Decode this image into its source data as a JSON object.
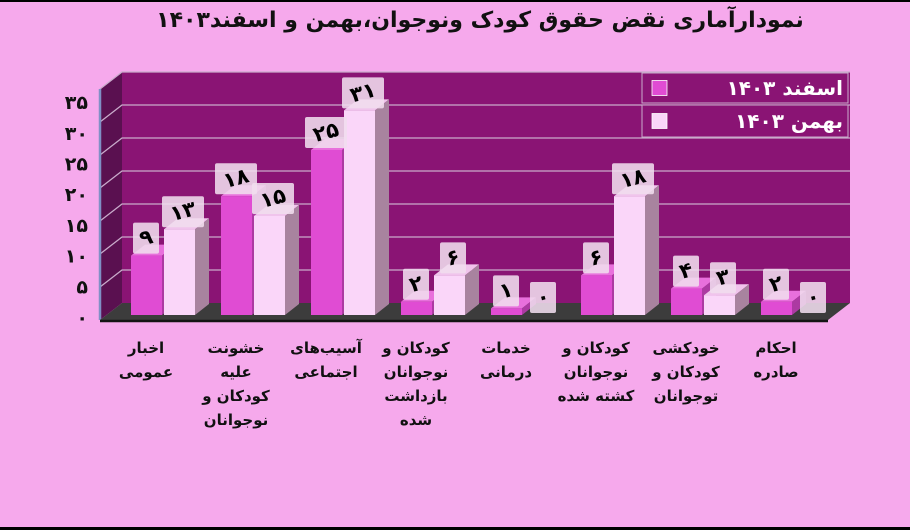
{
  "page": {
    "title": "نمودارآماری نقض حقوق کودک ونوجوان،بهمن  و  اسفند۱۴۰۳"
  },
  "colors": {
    "background": "#F6A9EC",
    "title_text": "#111111",
    "axis_text": "#111111",
    "back_wall": "#8A1474",
    "left_wall": "#5A1050",
    "wall_edge": "#8090C5",
    "floor": "#3C3C3C",
    "floor_edge": "#141414",
    "gridline": "#C9ABCB",
    "esfand": "#E04CD3",
    "esfand_top": "#E870DC",
    "esfand_side": "#AC3AA2",
    "bahman": "#FAD6F9",
    "bahman_top": "#F0C4EC",
    "bahman_side": "#A8839F",
    "tag_bg": "#F0DDEE",
    "tag_text": "#000000",
    "legend_text": "#FFFFFF"
  },
  "chart_data": {
    "type": "bar",
    "style": "3d-clustered",
    "title": "نمودارآماری نقض حقوق کودک ونوجوان،بهمن  و  اسفند۱۴۰۳",
    "categories": [
      "اخبار عمومی",
      "خشونت علیه کودکان و نوجوانان",
      "آسیب‌های اجتماعی",
      "کودکان و نوجوانان بازداشت شده",
      "خدمات درمانی",
      "کودکان و نوجوانان کشته شده",
      "خودکشی کودکان و توجوانان",
      "احکام صادره"
    ],
    "category_lines": [
      [
        "اخبار",
        "عمومی"
      ],
      [
        "خشونت",
        "علیه",
        "کودکان و",
        "نوجوانان"
      ],
      [
        "آسیب‌های",
        "اجتماعی"
      ],
      [
        "کودکان و",
        "نوجوانان",
        "بازداشت",
        "شده"
      ],
      [
        "خدمات",
        "درمانی"
      ],
      [
        "کودکان و",
        "نوجوانان",
        "کشته شده"
      ],
      [
        "خودکشی",
        "کودکان و",
        "توجوانان"
      ],
      [
        "احکام",
        "صادره"
      ]
    ],
    "series": [
      {
        "name": "اسفند ۱۴۰۳",
        "color_key": "esfand",
        "values": [
          9,
          18,
          25,
          2,
          1,
          6,
          4,
          2
        ]
      },
      {
        "name": "بهمن ۱۴۰۳",
        "color_key": "bahman",
        "values": [
          13,
          15,
          31,
          6,
          0,
          18,
          3,
          0
        ]
      }
    ],
    "ylim": [
      0,
      35
    ],
    "ytick_step": 5,
    "yticks_display": [
      "۰",
      "۵",
      "۱۰",
      "۱۵",
      "۲۰",
      "۲۵",
      "۳۰",
      "۳۵"
    ],
    "grid": true,
    "legend": {
      "position": "top-right",
      "entries": [
        "اسفند ۱۴۰۳",
        "بهمن ۱۴۰۳"
      ]
    }
  }
}
